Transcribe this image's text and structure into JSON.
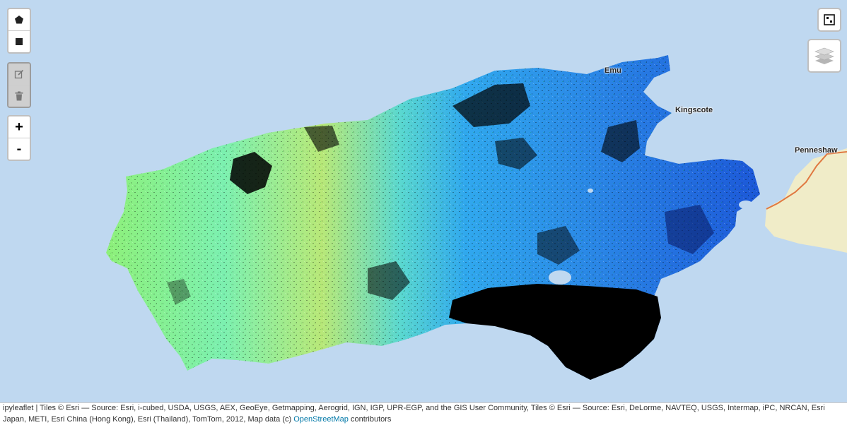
{
  "map": {
    "places": [
      {
        "name": "Emu"
      },
      {
        "name": "Kingscote"
      },
      {
        "name": "Penneshaw"
      }
    ],
    "colors": {
      "water": "#bfd8f0",
      "mainland": "#f0ecc8",
      "road": "#e07840",
      "west_low": "#a8f070",
      "west_mid": "#58e8b0",
      "east_mid": "#2aa0e8",
      "east_deep": "#1e50d8",
      "nodata": "#000000"
    }
  },
  "controls": {
    "draw": [
      {
        "icon": "polygon-icon"
      },
      {
        "icon": "rectangle-icon"
      }
    ],
    "edit": [
      {
        "icon": "edit-icon"
      },
      {
        "icon": "trash-icon"
      }
    ],
    "zoom_in": "+",
    "zoom_out": "-",
    "fullscreen_icon": "fullscreen-icon",
    "layers_icon": "layers-icon"
  },
  "attribution": {
    "text": "ipyleaflet | Tiles © Esri — Source: Esri, i-cubed, USDA, USGS, AEX, GeoEye, Getmapping, Aerogrid, IGN, IGP, UPR-EGP, and the GIS User Community, Tiles © Esri — Source: Esri, DeLorme, NAVTEQ, USGS, Intermap, iPC, NRCAN, Esri Japan, METI, Esri China (Hong Kong), Esri (Thailand), TomTom, 2012, Map data (c) ",
    "link": "OpenStreetMap",
    "suffix": " contributors"
  }
}
